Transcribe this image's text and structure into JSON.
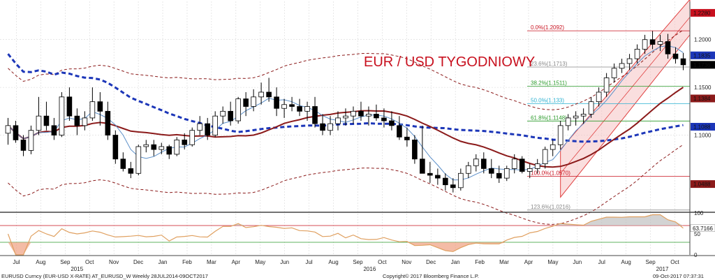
{
  "chart_data": {
    "type": "candlestick",
    "title": "EUR / USD TYGODNIOWY",
    "colors": {
      "title": "#c8101e",
      "ma_long": "#1c36b8",
      "ma_mid": "#8b1a1a",
      "ma_short": "#5b8fc9",
      "band": "#8b1a1a",
      "channel": "#e04040",
      "channel_fill": "#f6c2c2",
      "candle_up": "#ffffff",
      "candle_down": "#000000",
      "rsi_line": "#e0a060",
      "rsi_fill_high": "#c0c0c0",
      "rsi_fill_low": "#f0a080"
    },
    "x_axis": {
      "months": [
        "Jul",
        "Aug",
        "Sep",
        "Oct",
        "Nov",
        "Dec",
        "Jan",
        "Feb",
        "Mar",
        "Apr",
        "May",
        "Jun",
        "Jul",
        "Aug",
        "Sep",
        "Oct",
        "Nov",
        "Dec",
        "Jan",
        "Feb",
        "Mar",
        "Apr",
        "May",
        "Jun",
        "Jul",
        "Aug",
        "Sep",
        "Oct"
      ],
      "years": [
        "2015",
        "2016",
        "2017"
      ]
    },
    "y_axis": {
      "ticks": [
        "1.2000",
        "1.1500",
        "1.1000"
      ],
      "ylim": [
        1.02,
        1.24
      ]
    },
    "price_tags": [
      {
        "label": "1.2280",
        "value": 1.228,
        "bg": "#c8101e",
        "fg": "#ffffff"
      },
      {
        "label": "1.1835",
        "value": 1.1835,
        "bg": "#1c36b8",
        "fg": "#ffffff"
      },
      {
        "label": "1.1736",
        "value": 1.1736,
        "bg": "#000000",
        "fg": "#ffffff"
      },
      {
        "label": "1.1384",
        "value": 1.1384,
        "bg": "#8b1a1a",
        "fg": "#ffffff"
      },
      {
        "label": "1.1088",
        "value": 1.1088,
        "bg": "#1c36b8",
        "fg": "#ffffff"
      },
      {
        "label": "1.0488",
        "value": 1.0488,
        "bg": "#8b1a1a",
        "fg": "#ffffff"
      }
    ],
    "fibonacci": [
      {
        "label": "0.0%(1.2092)",
        "value": 1.2092,
        "color": "#c8101e"
      },
      {
        "label": "23.6%(1.1713)",
        "value": 1.1713,
        "color": "#888888"
      },
      {
        "label": "38.2%(1.1511)",
        "value": 1.1511,
        "color": "#2a9a2a"
      },
      {
        "label": "50.0%(1.133)",
        "value": 1.133,
        "color": "#2ab0d0"
      },
      {
        "label": "61.8%(1.1148)",
        "value": 1.1148,
        "color": "#2a9a2a"
      },
      {
        "label": "100.0%(1.0570)",
        "value": 1.057,
        "color": "#c8101e"
      },
      {
        "label": "123.6%(1.0216)",
        "value": 1.0216,
        "color": "#888888"
      }
    ],
    "candles": [
      [
        1.102,
        1.118,
        1.09,
        1.11
      ],
      [
        1.11,
        1.115,
        1.092,
        1.095
      ],
      [
        1.095,
        1.1,
        1.078,
        1.084
      ],
      [
        1.084,
        1.11,
        1.08,
        1.105
      ],
      [
        1.105,
        1.14,
        1.1,
        1.12
      ],
      [
        1.12,
        1.135,
        1.105,
        1.11
      ],
      [
        1.11,
        1.118,
        1.095,
        1.1
      ],
      [
        1.1,
        1.145,
        1.098,
        1.14
      ],
      [
        1.14,
        1.15,
        1.115,
        1.12
      ],
      [
        1.12,
        1.128,
        1.1,
        1.11
      ],
      [
        1.11,
        1.125,
        1.105,
        1.118
      ],
      [
        1.118,
        1.15,
        1.115,
        1.135
      ],
      [
        1.135,
        1.145,
        1.11,
        1.125
      ],
      [
        1.125,
        1.135,
        1.095,
        1.1
      ],
      [
        1.1,
        1.105,
        1.07,
        1.075
      ],
      [
        1.075,
        1.082,
        1.062,
        1.065
      ],
      [
        1.065,
        1.072,
        1.055,
        1.06
      ],
      [
        1.06,
        1.09,
        1.058,
        1.088
      ],
      [
        1.088,
        1.095,
        1.082,
        1.09
      ],
      [
        1.09,
        1.095,
        1.078,
        1.085
      ],
      [
        1.085,
        1.092,
        1.08,
        1.088
      ],
      [
        1.088,
        1.09,
        1.075,
        1.08
      ],
      [
        1.08,
        1.098,
        1.078,
        1.095
      ],
      [
        1.095,
        1.102,
        1.085,
        1.09
      ],
      [
        1.09,
        1.108,
        1.088,
        1.105
      ],
      [
        1.105,
        1.12,
        1.1,
        1.112
      ],
      [
        1.112,
        1.118,
        1.095,
        1.1
      ],
      [
        1.1,
        1.125,
        1.098,
        1.12
      ],
      [
        1.12,
        1.13,
        1.112,
        1.125
      ],
      [
        1.125,
        1.135,
        1.11,
        1.115
      ],
      [
        1.115,
        1.14,
        1.112,
        1.138
      ],
      [
        1.138,
        1.145,
        1.12,
        1.13
      ],
      [
        1.13,
        1.148,
        1.125,
        1.14
      ],
      [
        1.14,
        1.155,
        1.132,
        1.145
      ],
      [
        1.145,
        1.16,
        1.135,
        1.14
      ],
      [
        1.14,
        1.15,
        1.12,
        1.128
      ],
      [
        1.128,
        1.138,
        1.118,
        1.132
      ],
      [
        1.132,
        1.14,
        1.125,
        1.13
      ],
      [
        1.13,
        1.138,
        1.12,
        1.125
      ],
      [
        1.125,
        1.135,
        1.115,
        1.13
      ],
      [
        1.13,
        1.14,
        1.108,
        1.112
      ],
      [
        1.112,
        1.122,
        1.1,
        1.105
      ],
      [
        1.105,
        1.12,
        1.1,
        1.112
      ],
      [
        1.112,
        1.125,
        1.105,
        1.118
      ],
      [
        1.118,
        1.128,
        1.11,
        1.12
      ],
      [
        1.12,
        1.13,
        1.112,
        1.125
      ],
      [
        1.125,
        1.135,
        1.115,
        1.12
      ],
      [
        1.12,
        1.13,
        1.11,
        1.122
      ],
      [
        1.122,
        1.132,
        1.115,
        1.118
      ],
      [
        1.118,
        1.128,
        1.108,
        1.115
      ],
      [
        1.115,
        1.125,
        1.105,
        1.11
      ],
      [
        1.11,
        1.12,
        1.095,
        1.098
      ],
      [
        1.098,
        1.108,
        1.088,
        1.095
      ],
      [
        1.095,
        1.1,
        1.07,
        1.075
      ],
      [
        1.075,
        1.11,
        1.06,
        1.06
      ],
      [
        1.06,
        1.072,
        1.05,
        1.058
      ],
      [
        1.058,
        1.065,
        1.048,
        1.055
      ],
      [
        1.055,
        1.06,
        1.042,
        1.048
      ],
      [
        1.048,
        1.055,
        1.04,
        1.045
      ],
      [
        1.045,
        1.065,
        1.042,
        1.06
      ],
      [
        1.06,
        1.072,
        1.055,
        1.068
      ],
      [
        1.068,
        1.08,
        1.062,
        1.075
      ],
      [
        1.075,
        1.082,
        1.06,
        1.065
      ],
      [
        1.065,
        1.075,
        1.055,
        1.06
      ],
      [
        1.06,
        1.068,
        1.05,
        1.055
      ],
      [
        1.055,
        1.068,
        1.052,
        1.065
      ],
      [
        1.065,
        1.08,
        1.06,
        1.075
      ],
      [
        1.075,
        1.078,
        1.06,
        1.062
      ],
      [
        1.062,
        1.07,
        1.055,
        1.065
      ],
      [
        1.065,
        1.075,
        1.06,
        1.07
      ],
      [
        1.07,
        1.088,
        1.065,
        1.085
      ],
      [
        1.085,
        1.095,
        1.078,
        1.09
      ],
      [
        1.09,
        1.115,
        1.085,
        1.11
      ],
      [
        1.11,
        1.122,
        1.105,
        1.118
      ],
      [
        1.118,
        1.125,
        1.11,
        1.12
      ],
      [
        1.12,
        1.128,
        1.112,
        1.122
      ],
      [
        1.122,
        1.14,
        1.118,
        1.135
      ],
      [
        1.135,
        1.15,
        1.13,
        1.145
      ],
      [
        1.145,
        1.165,
        1.14,
        1.16
      ],
      [
        1.16,
        1.175,
        1.155,
        1.17
      ],
      [
        1.17,
        1.18,
        1.165,
        1.175
      ],
      [
        1.175,
        1.185,
        1.168,
        1.18
      ],
      [
        1.18,
        1.195,
        1.175,
        1.19
      ],
      [
        1.19,
        1.205,
        1.185,
        1.2
      ],
      [
        1.2,
        1.209,
        1.19,
        1.195
      ],
      [
        1.195,
        1.205,
        1.188,
        1.198
      ],
      [
        1.198,
        1.206,
        1.18,
        1.185
      ],
      [
        1.185,
        1.192,
        1.175,
        1.18
      ],
      [
        1.18,
        1.186,
        1.168,
        1.1736
      ]
    ],
    "rsi": {
      "ticks": [
        "100",
        "50",
        "0"
      ],
      "levels": [
        70,
        30
      ],
      "last_label": "63.7166",
      "last_value": 63.7166
    }
  },
  "footer": {
    "left": "EURUSD Curncy (EUR-USD X-RATE) AT_EURUSD_W  Weekly 28JUL2014-09OCT2017",
    "center": "Copyright© 2017 Bloomberg Finance L.P.",
    "right": "09-Oct-2017 07:37:31"
  }
}
